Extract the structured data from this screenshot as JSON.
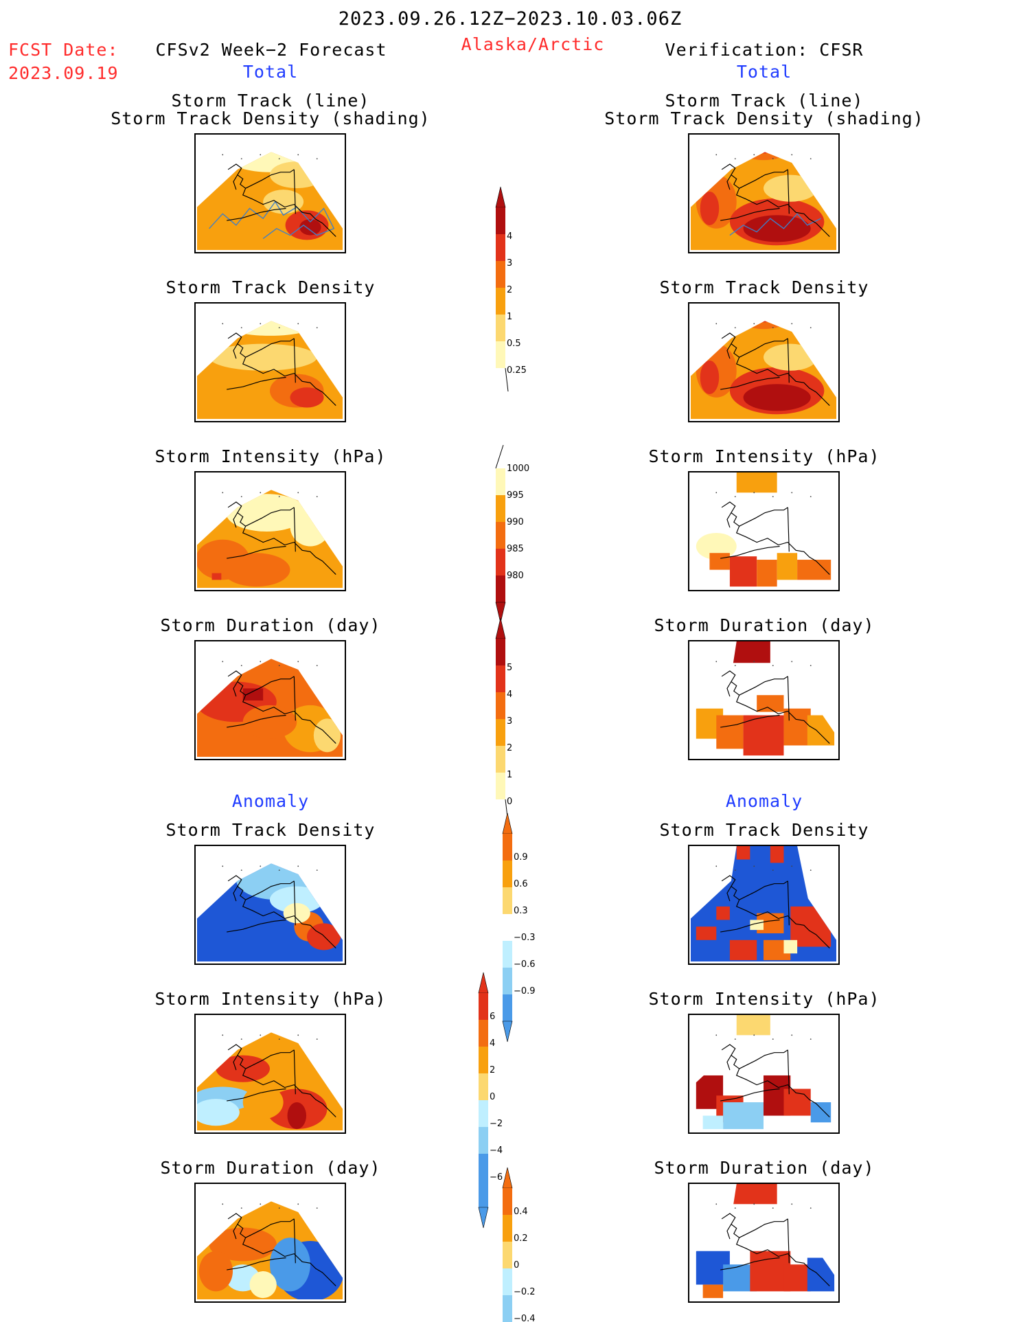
{
  "header": {
    "date_range": "2023.09.26.12Z−2023.10.03.06Z",
    "fcst_label": "FCST Date:",
    "fcst_date": "2023.09.19",
    "left_title": "CFSv2 Week−2 Forecast",
    "region": "Alaska/Arctic",
    "right_title": "Verification: CFSR",
    "total_left": "Total",
    "total_right": "Total",
    "anomaly_left": "Anomaly",
    "anomaly_right": "Anomaly"
  },
  "panels": [
    {
      "title": "Storm Track (line)",
      "subtitle": "Storm Track Density (shading)"
    },
    {
      "title": "Storm Track Density"
    },
    {
      "title": "Storm Intensity (hPa)"
    },
    {
      "title": "Storm Duration (day)"
    },
    {
      "title": "Storm Track Density"
    },
    {
      "title": "Storm Intensity (hPa)"
    },
    {
      "title": "Storm Duration (day)"
    }
  ],
  "colors": {
    "c1": "#fff8b8",
    "c2": "#fcd870",
    "c3": "#f8a00e",
    "c4": "#f36d10",
    "c5": "#e2331a",
    "c6": "#b00f0f",
    "n1": "#bfefff",
    "n2": "#8ccff3",
    "n3": "#4a9ae8",
    "n4": "#1e57d6",
    "track": "#3f7fc8"
  },
  "chart_data": [
    {
      "type": "heatmap",
      "name": "track_density_total",
      "levels": [
        0.25,
        0.5,
        1,
        2,
        3,
        4
      ],
      "level_labels": [
        "0.25",
        "0.5",
        "1",
        "2",
        "3",
        "4"
      ]
    },
    {
      "type": "heatmap",
      "name": "intensity_total",
      "levels": [
        1000,
        995,
        990,
        985,
        980
      ],
      "level_labels": [
        "1000",
        "995",
        "990",
        "985",
        "980"
      ]
    },
    {
      "type": "heatmap",
      "name": "duration_total",
      "levels": [
        0,
        1,
        2,
        3,
        4,
        5
      ],
      "level_labels": [
        "0",
        "1",
        "2",
        "3",
        "4",
        "5"
      ]
    },
    {
      "type": "heatmap",
      "name": "track_density_anomaly",
      "levels": [
        0.9,
        0.6,
        0.3,
        -0.3,
        -0.6,
        -0.9
      ],
      "level_labels": [
        "0.9",
        "0.6",
        "0.3",
        "−0.3",
        "−0.6",
        "−0.9"
      ]
    },
    {
      "type": "heatmap",
      "name": "intensity_anomaly",
      "levels": [
        6,
        4,
        2,
        0,
        -2,
        -4,
        -6
      ],
      "level_labels": [
        "6",
        "4",
        "2",
        "0",
        "−2",
        "−4",
        "−6"
      ]
    },
    {
      "type": "heatmap",
      "name": "duration_anomaly",
      "levels": [
        0.4,
        0.2,
        0,
        -0.2,
        -0.4
      ],
      "level_labels": [
        "0.4",
        "0.2",
        "0",
        "−0.2",
        "−0.4"
      ]
    }
  ]
}
